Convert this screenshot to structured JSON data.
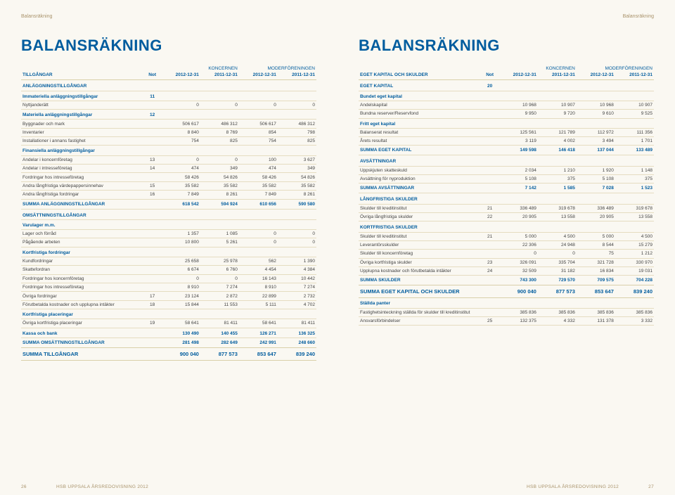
{
  "header_label": "Balansräkning",
  "main_title": "BALANSRÄKNING",
  "col_groups": [
    "KONCERNEN",
    "MODERFÖRENINGEN"
  ],
  "left": {
    "heading": "TILLGÅNGAR",
    "note_label": "Not",
    "cols": [
      "2012-12-31",
      "2011-12-31",
      "2012-12-31",
      "2011-12-31"
    ],
    "rows": [
      {
        "type": "section",
        "label": "ANLÄGGNINGSTILLGÅNGAR"
      },
      {
        "type": "sub",
        "label": "Immateriella anläggningstillgångar",
        "note": "11"
      },
      {
        "label": "Nyttjanderätt",
        "v": [
          "0",
          "0",
          "0",
          "0"
        ]
      },
      {
        "type": "sub",
        "label": "Materiella anläggningstillgångar",
        "note": "12"
      },
      {
        "label": "Byggnader och mark",
        "v": [
          "506 617",
          "486 312",
          "506 617",
          "486 312"
        ]
      },
      {
        "label": "Inventarier",
        "v": [
          "8 840",
          "8 769",
          "854",
          "798"
        ]
      },
      {
        "label": "Installationer i annans fastighet",
        "v": [
          "754",
          "825",
          "754",
          "825"
        ]
      },
      {
        "type": "sub",
        "label": "Finansiella anläggningstillgångar"
      },
      {
        "label": "Andelar i koncernföretag",
        "note": "13",
        "v": [
          "0",
          "0",
          "100",
          "3 627"
        ]
      },
      {
        "label": "Andelar i intresseföretag",
        "note": "14",
        "v": [
          "474",
          "349",
          "474",
          "349"
        ]
      },
      {
        "label": "Fordringar hos intresseföretag",
        "v": [
          "58 426",
          "54 826",
          "58 426",
          "54 826"
        ]
      },
      {
        "label": "Andra långfristiga värdepappersinnehav",
        "note": "15",
        "v": [
          "35 582",
          "35 582",
          "35 582",
          "35 582"
        ]
      },
      {
        "label": "Andra långfristiga fordringar",
        "note": "16",
        "v": [
          "7 849",
          "8 261",
          "7 849",
          "8 261"
        ]
      },
      {
        "type": "sum",
        "label": "SUMMA ANLÄGGNINGSTILLGÅNGAR",
        "v": [
          "618 542",
          "594 924",
          "610 656",
          "590 580"
        ]
      },
      {
        "type": "section",
        "label": "OMSÄTTNINGSTILLGÅNGAR"
      },
      {
        "type": "sub",
        "label": "Varulager m.m."
      },
      {
        "label": "Lager och förråd",
        "v": [
          "1 357",
          "1 085",
          "0",
          "0"
        ]
      },
      {
        "label": "Pågående arbeten",
        "v": [
          "10 800",
          "5 261",
          "0",
          "0"
        ]
      },
      {
        "type": "sub",
        "label": "Kortfristiga fordringar"
      },
      {
        "label": "Kundfordringar",
        "v": [
          "25 658",
          "25 978",
          "562",
          "1 390"
        ]
      },
      {
        "label": "Skattefordran",
        "v": [
          "6 674",
          "6 760",
          "4 454",
          "4 384"
        ]
      },
      {
        "label": "Fordringar hos koncernföretag",
        "v": [
          "0",
          "0",
          "16 143",
          "10 442"
        ]
      },
      {
        "label": "Fordringar hos intresseföretag",
        "v": [
          "8 910",
          "7 274",
          "8 910",
          "7 274"
        ]
      },
      {
        "label": "Övriga fordringar",
        "note": "17",
        "v": [
          "23 124",
          "2 872",
          "22 899",
          "2 732"
        ]
      },
      {
        "label": "Förutbetalda kostnader och upplupna intäkter",
        "note": "18",
        "v": [
          "15 844",
          "11 553",
          "5 111",
          "4 702"
        ]
      },
      {
        "type": "sub",
        "label": "Kortfristiga placeringar"
      },
      {
        "label": "Övriga kortfristiga placeringar",
        "note": "19",
        "v": [
          "58 641",
          "81 411",
          "58 641",
          "81 411"
        ]
      },
      {
        "type": "sub",
        "label": "Kassa och bank",
        "v": [
          "130 490",
          "140 455",
          "126 271",
          "136 325"
        ]
      },
      {
        "type": "sum",
        "label": "SUMMA OMSÄTTNINGSTILLGÅNGAR",
        "v": [
          "281 498",
          "282 649",
          "242 991",
          "248 660"
        ]
      },
      {
        "type": "grand",
        "label": "SUMMA TILLGÅNGAR",
        "v": [
          "900 040",
          "877 573",
          "853 647",
          "839 240"
        ]
      }
    ],
    "footer_text": "HSB UPPSALA ÅRSREDOVISNING 2012",
    "page_num": "26"
  },
  "right": {
    "heading": "EGET KAPITAL OCH SKULDER",
    "note_label": "Not",
    "cols": [
      "2012-12-31",
      "2011-12-31",
      "2012-12-31",
      "2011-12-31"
    ],
    "rows": [
      {
        "type": "section",
        "label": "EGET KAPITAL",
        "note": "20"
      },
      {
        "type": "sub",
        "label": "Bundet eget kapital"
      },
      {
        "label": "Andelskapital",
        "v": [
          "10 968",
          "10 907",
          "10 968",
          "10 907"
        ]
      },
      {
        "label": "Bundna reserver/Reservfond",
        "v": [
          "9 950",
          "9 720",
          "9 610",
          "9 525"
        ]
      },
      {
        "type": "sub",
        "label": "Fritt eget kapital"
      },
      {
        "label": "Balanserat resultat",
        "v": [
          "125 561",
          "121 789",
          "112 972",
          "111 356"
        ]
      },
      {
        "label": "Årets resultat",
        "v": [
          "3 119",
          "4 002",
          "3 494",
          "1 701"
        ]
      },
      {
        "type": "sum",
        "label": "SUMMA EGET KAPITAL",
        "v": [
          "149 598",
          "146 418",
          "137 044",
          "133 489"
        ]
      },
      {
        "type": "section",
        "label": "AVSÄTTNINGAR"
      },
      {
        "label": "Uppskjuten skatteskuld",
        "v": [
          "2 034",
          "1 210",
          "1 920",
          "1 148"
        ]
      },
      {
        "label": "Avsättning för nyproduktion",
        "v": [
          "5 108",
          "375",
          "5 108",
          "375"
        ]
      },
      {
        "type": "sum",
        "label": "SUMMA AVSÄTTNINGAR",
        "v": [
          "7 142",
          "1 585",
          "7 028",
          "1 523"
        ]
      },
      {
        "type": "section",
        "label": "LÅNGFRISTIGA SKULDER"
      },
      {
        "label": "Skulder till kreditinstitut",
        "note": "21",
        "v": [
          "336 489",
          "319 678",
          "336 489",
          "319 678"
        ]
      },
      {
        "label": "Övriga långfristiga skulder",
        "note": "22",
        "v": [
          "20 905",
          "13 558",
          "20 905",
          "13 558"
        ]
      },
      {
        "type": "section",
        "label": "KORTFRISTIGA SKULDER"
      },
      {
        "label": "Skulder till kreditinstitut",
        "note": "21",
        "v": [
          "5 000",
          "4 500",
          "5 000",
          "4 500"
        ]
      },
      {
        "label": "Leverantörsskulder",
        "v": [
          "22 306",
          "24 948",
          "8 544",
          "15 279"
        ]
      },
      {
        "label": "Skulder till koncernföretag",
        "v": [
          "0",
          "0",
          "75",
          "1 212"
        ]
      },
      {
        "label": "Övriga kortfristiga skulder",
        "note": "23",
        "v": [
          "326 091",
          "335 704",
          "321 728",
          "330 970"
        ]
      },
      {
        "label": "Upplupna kostnader och förutbetalda intäkter",
        "note": "24",
        "v": [
          "32 509",
          "31 182",
          "16 834",
          "19 031"
        ]
      },
      {
        "type": "sum",
        "label": "SUMMA SKULDER",
        "v": [
          "743 300",
          "729 570",
          "709 575",
          "704 228"
        ]
      },
      {
        "type": "grand",
        "label": "SUMMA EGET KAPITAL OCH SKULDER",
        "v": [
          "900 040",
          "877 573",
          "853 647",
          "839 240"
        ]
      },
      {
        "type": "sub",
        "label": "Ställda panter"
      },
      {
        "label": "Fastighetsinteckning ställda för skulder till kreditinstitut",
        "v": [
          "385 836",
          "385 836",
          "385 836",
          "385 836"
        ]
      },
      {
        "label": "Ansvarsförbindelser",
        "note": "25",
        "v": [
          "132 375",
          "4 332",
          "131 378",
          "3 332"
        ]
      }
    ],
    "footer_text": "HSB UPPSALA ÅRSREDOVISNING 2012",
    "page_num": "27"
  }
}
